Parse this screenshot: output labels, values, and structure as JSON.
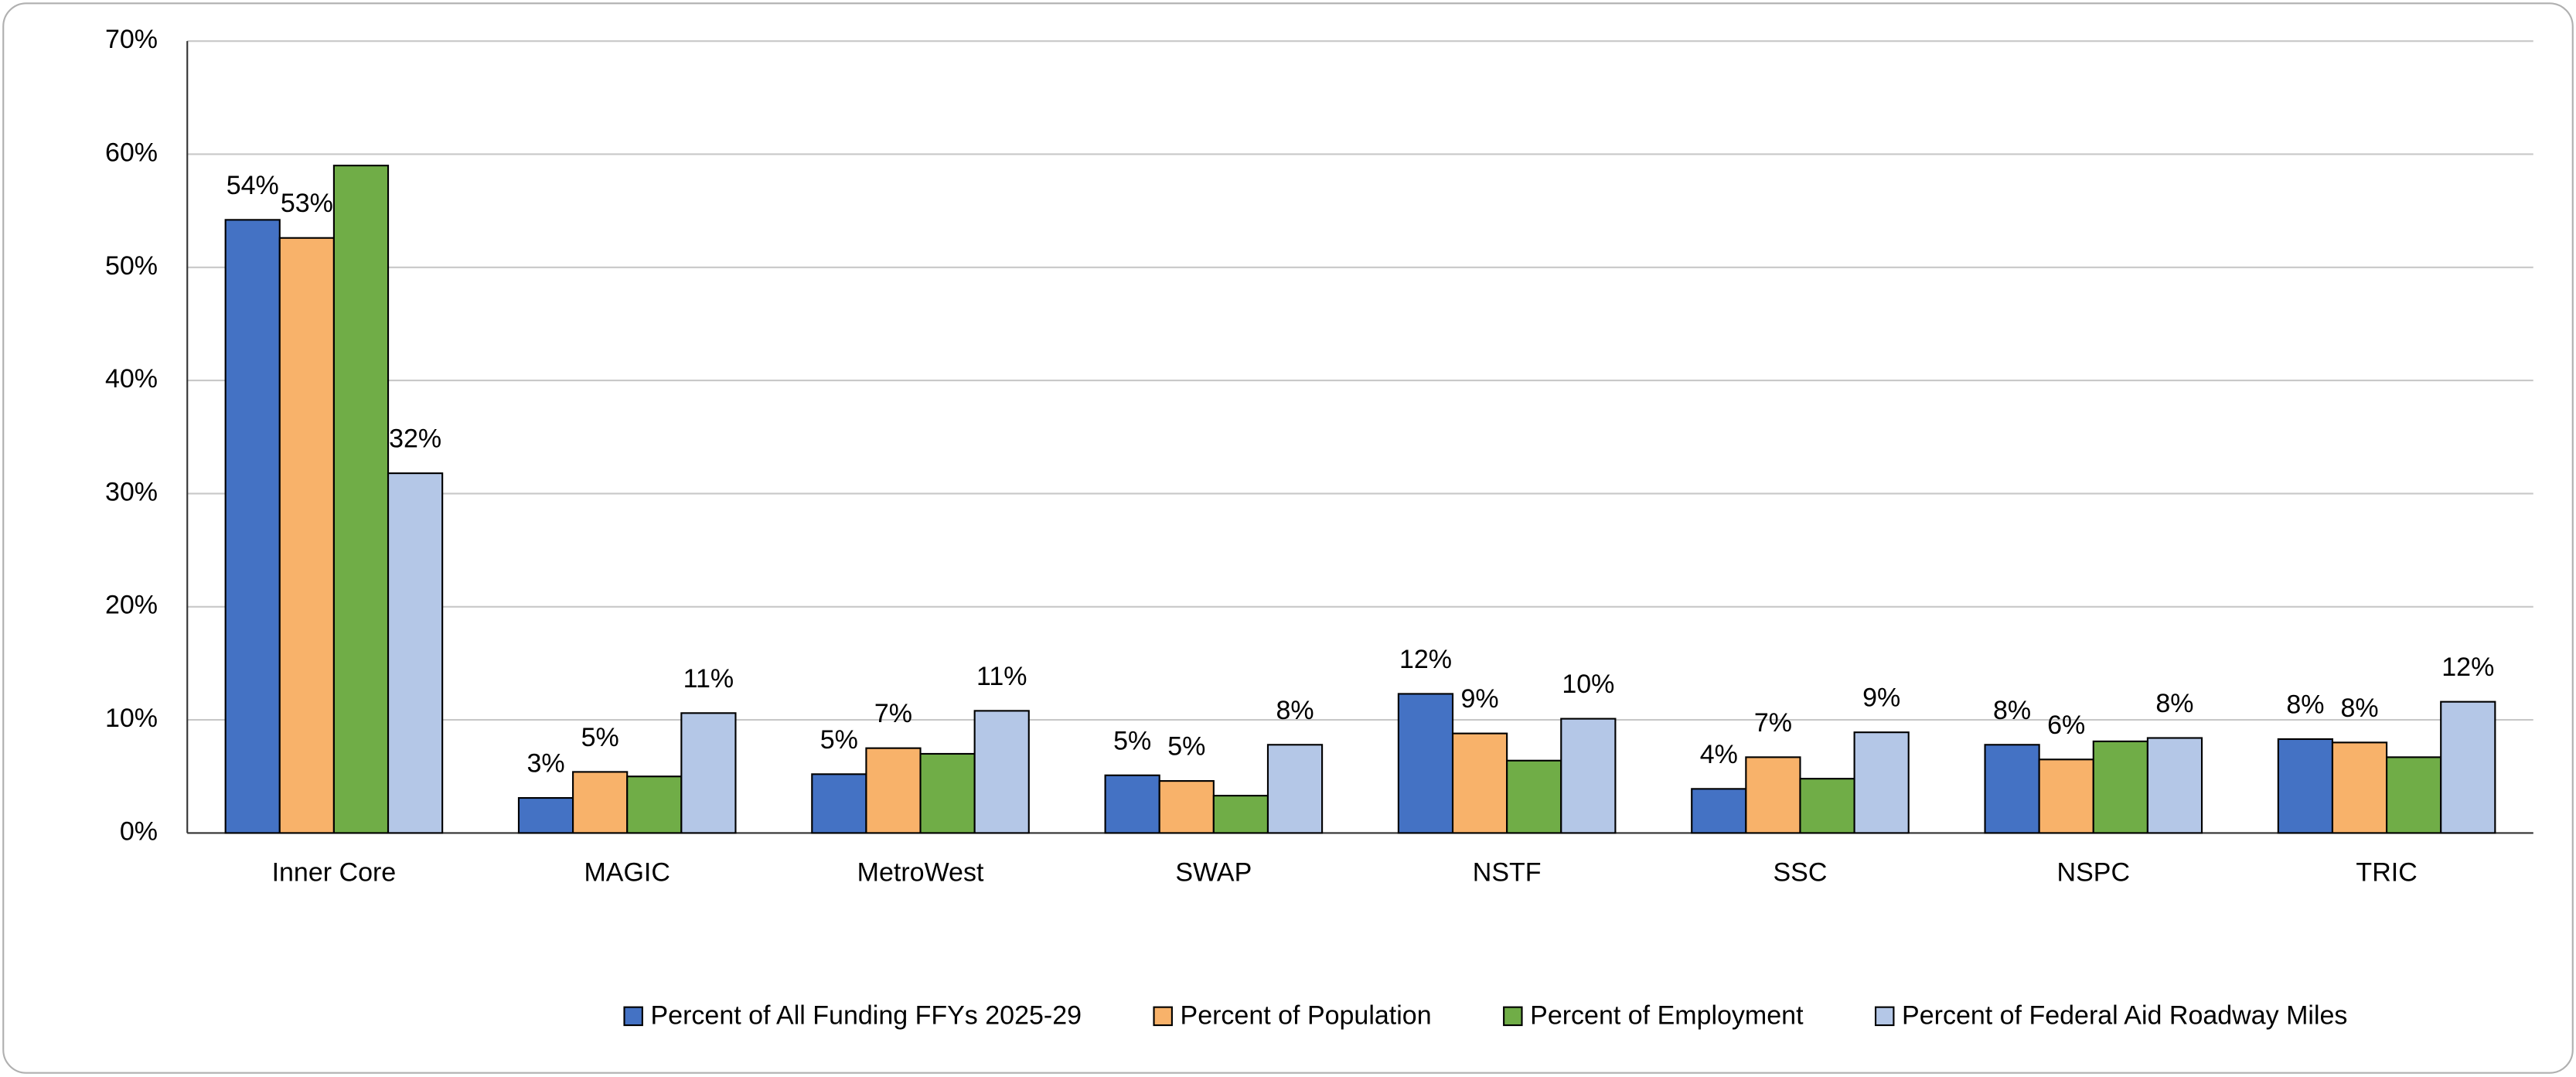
{
  "chart_data": {
    "type": "bar",
    "categories": [
      "Inner Core",
      "MAGIC",
      "MetroWest",
      "SWAP",
      "NSTF",
      "SSC",
      "NSPC",
      "TRIC"
    ],
    "series": [
      {
        "name": "Percent of All Funding FFYs 2025-29",
        "color": "#4472c4",
        "values": [
          54.2,
          3.1,
          5.2,
          5.1,
          12.3,
          3.9,
          7.8,
          8.3
        ],
        "value_labels": [
          "54%",
          "3%",
          "5%",
          "5%",
          "12%",
          "4%",
          "8%",
          "8%"
        ]
      },
      {
        "name": "Percent of Population",
        "color": "#f8b26a",
        "values": [
          52.6,
          5.4,
          7.5,
          4.6,
          8.8,
          6.7,
          6.5,
          8.0
        ],
        "value_labels": [
          "53%",
          "5%",
          "7%",
          "5%",
          "9%",
          "7%",
          "6%",
          "8%"
        ]
      },
      {
        "name": "Percent of Employment",
        "color": "#70ad47",
        "values": [
          59.0,
          5.0,
          7.0,
          3.3,
          6.4,
          4.8,
          8.1,
          6.7
        ]
      },
      {
        "name": "Percent of Federal Aid Roadway Miles",
        "color": "#b4c7e7",
        "values": [
          31.8,
          10.6,
          10.8,
          7.8,
          10.1,
          8.9,
          8.4,
          11.6
        ],
        "value_labels": [
          "32%",
          "11%",
          "11%",
          "8%",
          "10%",
          "9%",
          "8%",
          "12%"
        ]
      }
    ],
    "ylim": [
      0,
      70
    ],
    "yticks": [
      {
        "value": 0,
        "label": "0%"
      },
      {
        "value": 10,
        "label": "10%"
      },
      {
        "value": 20,
        "label": "20%"
      },
      {
        "value": 30,
        "label": "30%"
      },
      {
        "value": 40,
        "label": "40%"
      },
      {
        "value": 50,
        "label": "50%"
      },
      {
        "value": 60,
        "label": "60%"
      },
      {
        "value": 70,
        "label": "70%"
      }
    ],
    "grid": true,
    "legend": "bottom"
  }
}
